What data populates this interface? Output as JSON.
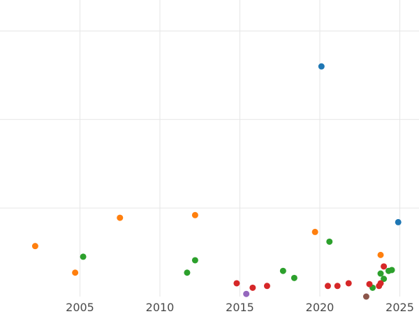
{
  "chart_data": {
    "type": "scatter",
    "title": "",
    "xlabel": "",
    "ylabel": "",
    "xlim": [
      2000.0,
      2026.2
    ],
    "ylim": [
      0.0,
      3.35
    ],
    "x_ticks": [
      2005,
      2010,
      2015,
      2020,
      2025
    ],
    "x_tick_labels": [
      "2005",
      "2010",
      "2015",
      "2020",
      "2025"
    ],
    "y_gridlines": [
      1,
      2,
      3
    ],
    "y_tick_labels": [],
    "grid": true,
    "legend": "none",
    "series": [
      {
        "color": "#1f77b4",
        "points": [
          [
            2020.1,
            2.6
          ],
          [
            2024.9,
            0.84
          ]
        ]
      },
      {
        "color": "#ff7f0e",
        "points": [
          [
            2002.2,
            0.57
          ],
          [
            2004.7,
            0.27
          ],
          [
            2007.5,
            0.89
          ],
          [
            2012.2,
            0.92
          ],
          [
            2019.7,
            0.73
          ],
          [
            2023.8,
            0.47
          ]
        ]
      },
      {
        "color": "#2ca02c",
        "points": [
          [
            2005.2,
            0.45
          ],
          [
            2011.7,
            0.27
          ],
          [
            2012.2,
            0.41
          ],
          [
            2017.7,
            0.29
          ],
          [
            2018.4,
            0.21
          ],
          [
            2020.6,
            0.62
          ],
          [
            2023.3,
            0.1
          ],
          [
            2023.8,
            0.26
          ],
          [
            2024.0,
            0.2
          ],
          [
            2024.3,
            0.29
          ],
          [
            2024.5,
            0.3
          ]
        ]
      },
      {
        "color": "#d62728",
        "points": [
          [
            2014.8,
            0.15
          ],
          [
            2015.8,
            0.1
          ],
          [
            2016.7,
            0.12
          ],
          [
            2020.5,
            0.12
          ],
          [
            2021.1,
            0.12
          ],
          [
            2021.8,
            0.15
          ],
          [
            2023.1,
            0.14
          ],
          [
            2023.7,
            0.12
          ],
          [
            2023.8,
            0.15
          ],
          [
            2024.0,
            0.34
          ]
        ]
      },
      {
        "color": "#9467bd",
        "points": [
          [
            2015.4,
            0.03
          ]
        ]
      },
      {
        "color": "#8c564b",
        "points": [
          [
            2022.9,
            0.0
          ]
        ]
      }
    ]
  }
}
